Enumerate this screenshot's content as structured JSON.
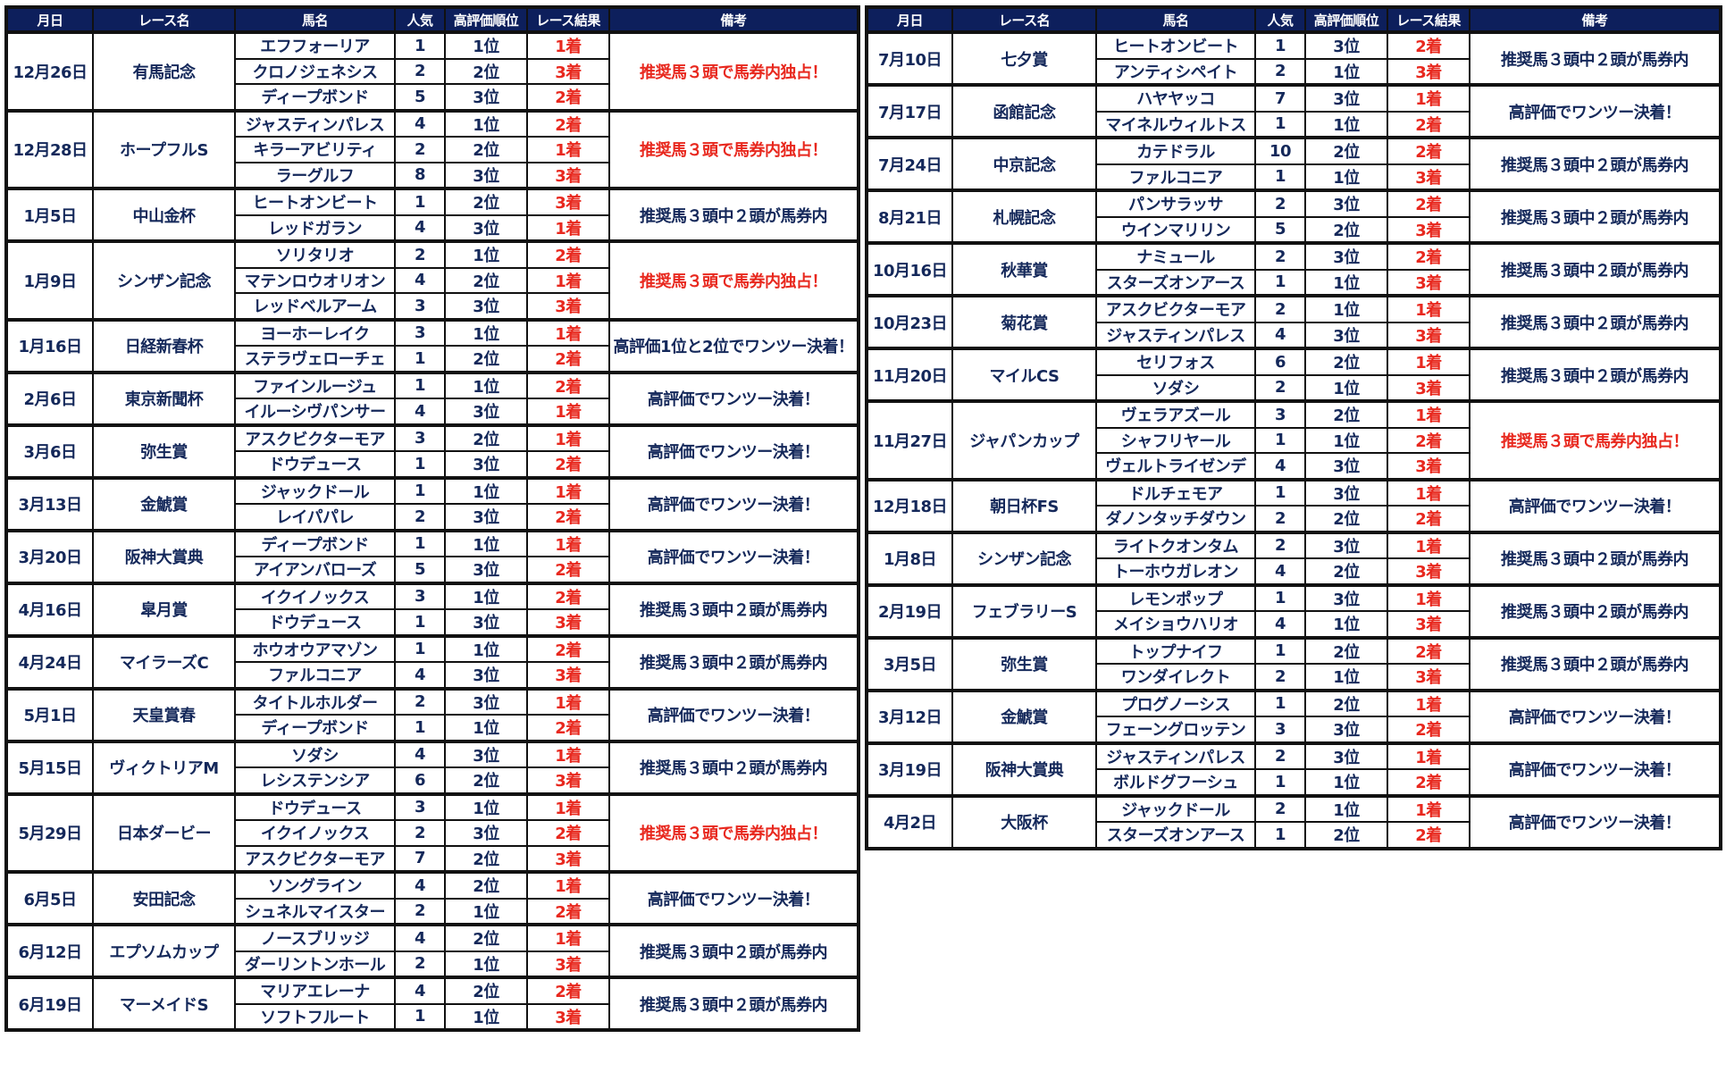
{
  "colors": {
    "header_bg": "#0d1f5c",
    "text": "#14285a",
    "accent_red": "#e8281e"
  },
  "headers": [
    "月日",
    "レース名",
    "馬名",
    "人気",
    "高評価順位",
    "レース結果",
    "備考"
  ],
  "left_table": [
    {
      "date": "12月26日",
      "race": "有馬記念",
      "note": "推奨馬３頭で馬券内独占！",
      "highlight": true,
      "horses": [
        [
          "エフフォーリア",
          "1",
          "1位",
          "1着"
        ],
        [
          "クロノジェネシス",
          "2",
          "2位",
          "3着"
        ],
        [
          "ディープボンド",
          "5",
          "3位",
          "2着"
        ]
      ]
    },
    {
      "date": "12月28日",
      "race": "ホープフルS",
      "note": "推奨馬３頭で馬券内独占！",
      "highlight": true,
      "horses": [
        [
          "ジャスティンパレス",
          "4",
          "1位",
          "2着"
        ],
        [
          "キラーアビリティ",
          "2",
          "2位",
          "1着"
        ],
        [
          "ラーグルフ",
          "8",
          "3位",
          "3着"
        ]
      ]
    },
    {
      "date": "1月5日",
      "race": "中山金杯",
      "note": "推奨馬３頭中２頭が馬券内",
      "highlight": false,
      "horses": [
        [
          "ヒートオンビート",
          "1",
          "2位",
          "3着"
        ],
        [
          "レッドガラン",
          "4",
          "3位",
          "1着"
        ]
      ]
    },
    {
      "date": "1月9日",
      "race": "シンザン記念",
      "note": "推奨馬３頭で馬券内独占！",
      "highlight": true,
      "horses": [
        [
          "ソリタリオ",
          "2",
          "1位",
          "2着"
        ],
        [
          "マテンロウオリオン",
          "4",
          "2位",
          "1着"
        ],
        [
          "レッドベルアーム",
          "3",
          "3位",
          "3着"
        ]
      ]
    },
    {
      "date": "1月16日",
      "race": "日経新春杯",
      "note": "高評価1位と2位でワンツー決着！",
      "highlight": false,
      "horses": [
        [
          "ヨーホーレイク",
          "3",
          "1位",
          "1着"
        ],
        [
          "ステラヴェローチェ",
          "1",
          "2位",
          "2着"
        ]
      ]
    },
    {
      "date": "2月6日",
      "race": "東京新聞杯",
      "note": "高評価でワンツー決着！",
      "highlight": false,
      "horses": [
        [
          "ファインルージュ",
          "1",
          "1位",
          "2着"
        ],
        [
          "イルーシヴパンサー",
          "4",
          "3位",
          "1着"
        ]
      ]
    },
    {
      "date": "3月6日",
      "race": "弥生賞",
      "note": "高評価でワンツー決着！",
      "highlight": false,
      "horses": [
        [
          "アスクビクターモア",
          "3",
          "2位",
          "1着"
        ],
        [
          "ドウデュース",
          "1",
          "3位",
          "2着"
        ]
      ]
    },
    {
      "date": "3月13日",
      "race": "金鯱賞",
      "note": "高評価でワンツー決着！",
      "highlight": false,
      "horses": [
        [
          "ジャックドール",
          "1",
          "1位",
          "1着"
        ],
        [
          "レイパパレ",
          "2",
          "3位",
          "2着"
        ]
      ]
    },
    {
      "date": "3月20日",
      "race": "阪神大賞典",
      "note": "高評価でワンツー決着！",
      "highlight": false,
      "horses": [
        [
          "ディープボンド",
          "1",
          "1位",
          "1着"
        ],
        [
          "アイアンバローズ",
          "5",
          "3位",
          "2着"
        ]
      ]
    },
    {
      "date": "4月16日",
      "race": "皐月賞",
      "note": "推奨馬３頭中２頭が馬券内",
      "highlight": false,
      "horses": [
        [
          "イクイノックス",
          "3",
          "1位",
          "2着"
        ],
        [
          "ドウデュース",
          "1",
          "3位",
          "3着"
        ]
      ]
    },
    {
      "date": "4月24日",
      "race": "マイラーズC",
      "note": "推奨馬３頭中２頭が馬券内",
      "highlight": false,
      "horses": [
        [
          "ホウオウアマゾン",
          "1",
          "1位",
          "2着"
        ],
        [
          "ファルコニア",
          "4",
          "3位",
          "3着"
        ]
      ]
    },
    {
      "date": "5月1日",
      "race": "天皇賞春",
      "note": "高評価でワンツー決着！",
      "highlight": false,
      "horses": [
        [
          "タイトルホルダー",
          "2",
          "3位",
          "1着"
        ],
        [
          "ディープボンド",
          "1",
          "1位",
          "2着"
        ]
      ]
    },
    {
      "date": "5月15日",
      "race": "ヴィクトリアM",
      "note": "推奨馬３頭中２頭が馬券内",
      "highlight": false,
      "horses": [
        [
          "ソダシ",
          "4",
          "3位",
          "1着"
        ],
        [
          "レシステンシア",
          "6",
          "2位",
          "3着"
        ]
      ]
    },
    {
      "date": "5月29日",
      "race": "日本ダービー",
      "note": "推奨馬３頭で馬券内独占！",
      "highlight": true,
      "horses": [
        [
          "ドウデュース",
          "3",
          "1位",
          "1着"
        ],
        [
          "イクイノックス",
          "2",
          "3位",
          "2着"
        ],
        [
          "アスクビクターモア",
          "7",
          "2位",
          "3着"
        ]
      ]
    },
    {
      "date": "6月5日",
      "race": "安田記念",
      "note": "高評価でワンツー決着！",
      "highlight": false,
      "horses": [
        [
          "ソングライン",
          "4",
          "2位",
          "1着"
        ],
        [
          "シュネルマイスター",
          "2",
          "1位",
          "2着"
        ]
      ]
    },
    {
      "date": "6月12日",
      "race": "エプソムカップ",
      "note": "推奨馬３頭中２頭が馬券内",
      "highlight": false,
      "horses": [
        [
          "ノースブリッジ",
          "4",
          "2位",
          "1着"
        ],
        [
          "ダーリントンホール",
          "2",
          "1位",
          "3着"
        ]
      ]
    },
    {
      "date": "6月19日",
      "race": "マーメイドS",
      "note": "推奨馬３頭中２頭が馬券内",
      "highlight": false,
      "horses": [
        [
          "マリアエレーナ",
          "4",
          "2位",
          "2着"
        ],
        [
          "ソフトフルート",
          "1",
          "1位",
          "3着"
        ]
      ]
    }
  ],
  "right_table": [
    {
      "date": "7月10日",
      "race": "七夕賞",
      "note": "推奨馬３頭中２頭が馬券内",
      "highlight": false,
      "horses": [
        [
          "ヒートオンビート",
          "1",
          "3位",
          "2着"
        ],
        [
          "アンティシペイト",
          "2",
          "1位",
          "3着"
        ]
      ]
    },
    {
      "date": "7月17日",
      "race": "函館記念",
      "note": "高評価でワンツー決着！",
      "highlight": false,
      "horses": [
        [
          "ハヤヤッコ",
          "7",
          "3位",
          "1着"
        ],
        [
          "マイネルウィルトス",
          "1",
          "1位",
          "2着"
        ]
      ]
    },
    {
      "date": "7月24日",
      "race": "中京記念",
      "note": "推奨馬３頭中２頭が馬券内",
      "highlight": false,
      "horses": [
        [
          "カテドラル",
          "10",
          "2位",
          "2着"
        ],
        [
          "ファルコニア",
          "1",
          "1位",
          "3着"
        ]
      ]
    },
    {
      "date": "8月21日",
      "race": "札幌記念",
      "note": "推奨馬３頭中２頭が馬券内",
      "highlight": false,
      "horses": [
        [
          "パンサラッサ",
          "2",
          "3位",
          "2着"
        ],
        [
          "ウインマリリン",
          "5",
          "2位",
          "3着"
        ]
      ]
    },
    {
      "date": "10月16日",
      "race": "秋華賞",
      "note": "推奨馬３頭中２頭が馬券内",
      "highlight": false,
      "horses": [
        [
          "ナミュール",
          "2",
          "3位",
          "2着"
        ],
        [
          "スターズオンアース",
          "1",
          "1位",
          "3着"
        ]
      ]
    },
    {
      "date": "10月23日",
      "race": "菊花賞",
      "note": "推奨馬３頭中２頭が馬券内",
      "highlight": false,
      "horses": [
        [
          "アスクビクターモア",
          "2",
          "1位",
          "1着"
        ],
        [
          "ジャスティンパレス",
          "4",
          "3位",
          "3着"
        ]
      ]
    },
    {
      "date": "11月20日",
      "race": "マイルCS",
      "note": "推奨馬３頭中２頭が馬券内",
      "highlight": false,
      "horses": [
        [
          "セリフォス",
          "6",
          "2位",
          "1着"
        ],
        [
          "ソダシ",
          "2",
          "1位",
          "3着"
        ]
      ]
    },
    {
      "date": "11月27日",
      "race": "ジャパンカップ",
      "note": "推奨馬３頭で馬券内独占！",
      "highlight": true,
      "horses": [
        [
          "ヴェラアズール",
          "3",
          "2位",
          "1着"
        ],
        [
          "シャフリヤール",
          "1",
          "1位",
          "2着"
        ],
        [
          "ヴェルトライゼンデ",
          "4",
          "3位",
          "3着"
        ]
      ]
    },
    {
      "date": "12月18日",
      "race": "朝日杯FS",
      "note": "高評価でワンツー決着！",
      "highlight": false,
      "horses": [
        [
          "ドルチェモア",
          "1",
          "3位",
          "1着"
        ],
        [
          "ダノンタッチダウン",
          "2",
          "2位",
          "2着"
        ]
      ]
    },
    {
      "date": "1月8日",
      "race": "シンザン記念",
      "note": "推奨馬３頭中２頭が馬券内",
      "highlight": false,
      "horses": [
        [
          "ライトクオンタム",
          "2",
          "3位",
          "1着"
        ],
        [
          "トーホウガレオン",
          "4",
          "2位",
          "3着"
        ]
      ]
    },
    {
      "date": "2月19日",
      "race": "フェブラリーS",
      "note": "推奨馬３頭中２頭が馬券内",
      "highlight": false,
      "horses": [
        [
          "レモンポップ",
          "1",
          "3位",
          "1着"
        ],
        [
          "メイショウハリオ",
          "4",
          "1位",
          "3着"
        ]
      ]
    },
    {
      "date": "3月5日",
      "race": "弥生賞",
      "note": "推奨馬３頭中２頭が馬券内",
      "highlight": false,
      "horses": [
        [
          "トップナイフ",
          "1",
          "2位",
          "2着"
        ],
        [
          "ワンダイレクト",
          "2",
          "1位",
          "3着"
        ]
      ]
    },
    {
      "date": "3月12日",
      "race": "金鯱賞",
      "note": "高評価でワンツー決着！",
      "highlight": false,
      "horses": [
        [
          "プログノーシス",
          "1",
          "2位",
          "1着"
        ],
        [
          "フェーングロッテン",
          "3",
          "3位",
          "2着"
        ]
      ]
    },
    {
      "date": "3月19日",
      "race": "阪神大賞典",
      "note": "高評価でワンツー決着！",
      "highlight": false,
      "horses": [
        [
          "ジャスティンパレス",
          "2",
          "3位",
          "1着"
        ],
        [
          "ボルドグフーシュ",
          "1",
          "1位",
          "2着"
        ]
      ]
    },
    {
      "date": "4月2日",
      "race": "大阪杯",
      "note": "高評価でワンツー決着！",
      "highlight": false,
      "horses": [
        [
          "ジャックドール",
          "2",
          "1位",
          "1着"
        ],
        [
          "スターズオンアース",
          "1",
          "2位",
          "2着"
        ]
      ]
    }
  ]
}
